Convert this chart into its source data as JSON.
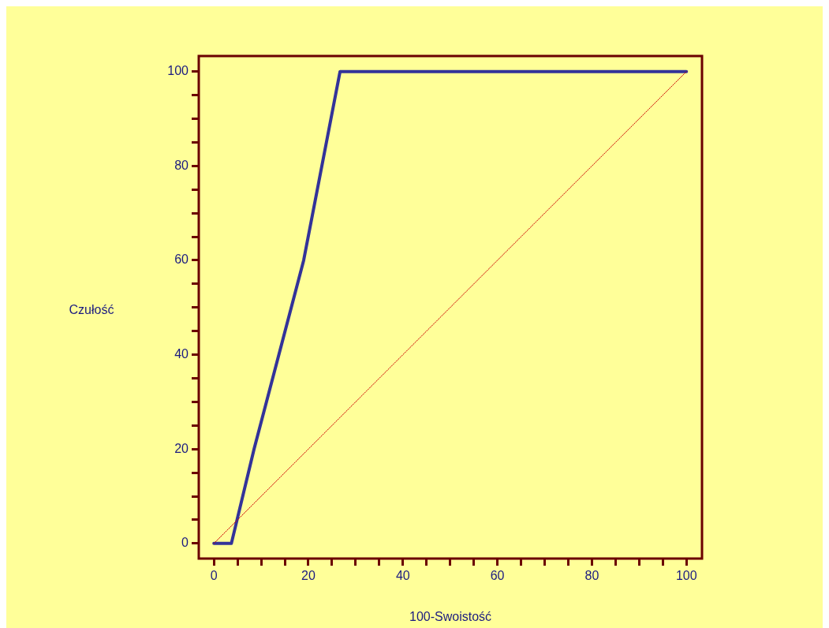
{
  "chart_data": {
    "type": "line",
    "xlabel": "100-Swoistość",
    "ylabel": "Czułość",
    "xlim": [
      -3.2,
      103.3
    ],
    "ylim": [
      -3.2,
      103.3
    ],
    "xticks": [
      0,
      {
        "value": 5,
        "label": null
      },
      {
        "value": 10,
        "label": null
      },
      {
        "value": 15,
        "label": null
      },
      20,
      {
        "value": 25,
        "label": null
      },
      {
        "value": 30,
        "label": null
      },
      {
        "value": 35,
        "label": null
      },
      40,
      {
        "value": 45,
        "label": null
      },
      {
        "value": 50,
        "label": null
      },
      {
        "value": 55,
        "label": null
      },
      60,
      {
        "value": 65,
        "label": null
      },
      {
        "value": 70,
        "label": null
      },
      {
        "value": 75,
        "label": null
      },
      80,
      {
        "value": 85,
        "label": null
      },
      {
        "value": 90,
        "label": null
      },
      {
        "value": 95,
        "label": null
      },
      100
    ],
    "yticks": [
      0,
      {
        "value": 5,
        "label": null
      },
      {
        "value": 10,
        "label": null
      },
      {
        "value": 15,
        "label": null
      },
      20,
      {
        "value": 25,
        "label": null
      },
      {
        "value": 30,
        "label": null
      },
      {
        "value": 35,
        "label": null
      },
      40,
      {
        "value": 45,
        "label": null
      },
      {
        "value": 50,
        "label": null
      },
      {
        "value": 55,
        "label": null
      },
      60,
      {
        "value": 65,
        "label": null
      },
      {
        "value": 70,
        "label": null
      },
      {
        "value": 75,
        "label": null
      },
      80,
      {
        "value": 85,
        "label": null
      },
      {
        "value": 90,
        "label": null
      },
      {
        "value": 95,
        "label": null
      },
      100
    ],
    "grid": false,
    "legend": false,
    "marker": "none",
    "series": [
      {
        "type": "line",
        "color": "#cc0000",
        "line_style": "dotted",
        "x": [
          0,
          100
        ],
        "values": [
          0,
          100
        ]
      },
      {
        "type": "line",
        "color": "#333399",
        "line_style": "solid",
        "x": [
          0,
          3.7,
          8.5,
          19,
          26.7,
          100
        ],
        "values": [
          0,
          0,
          20,
          60,
          100,
          100
        ]
      }
    ]
  }
}
